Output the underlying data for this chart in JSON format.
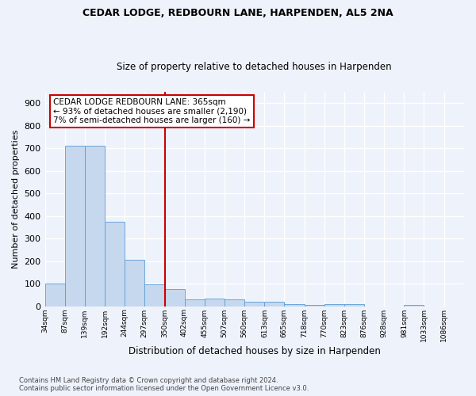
{
  "title1": "CEDAR LODGE, REDBOURN LANE, HARPENDEN, AL5 2NA",
  "title2": "Size of property relative to detached houses in Harpenden",
  "xlabel": "Distribution of detached houses by size in Harpenden",
  "ylabel": "Number of detached properties",
  "bar_color": "#c5d8ed",
  "bar_edgecolor": "#5b9bd5",
  "background_color": "#eef2fb",
  "grid_color": "#ffffff",
  "annotation_text": "CEDAR LODGE REDBOURN LANE: 365sqm\n← 93% of detached houses are smaller (2,190)\n7% of semi-detached houses are larger (160) →",
  "vline_color": "#cc0000",
  "categories": [
    "34sqm",
    "87sqm",
    "139sqm",
    "192sqm",
    "244sqm",
    "297sqm",
    "350sqm",
    "402sqm",
    "455sqm",
    "507sqm",
    "560sqm",
    "613sqm",
    "665sqm",
    "718sqm",
    "770sqm",
    "823sqm",
    "876sqm",
    "928sqm",
    "981sqm",
    "1033sqm",
    "1086sqm"
  ],
  "bin_edges": [
    34,
    87,
    139,
    192,
    244,
    297,
    350,
    402,
    455,
    507,
    560,
    613,
    665,
    718,
    770,
    823,
    876,
    928,
    981,
    1033,
    1086,
    1139
  ],
  "values": [
    100,
    710,
    710,
    375,
    205,
    95,
    75,
    30,
    32,
    30,
    20,
    20,
    10,
    7,
    10,
    8,
    0,
    0,
    5,
    0,
    0
  ],
  "vline_bin_index": 6,
  "ylim": [
    0,
    950
  ],
  "yticks": [
    0,
    100,
    200,
    300,
    400,
    500,
    600,
    700,
    800,
    900
  ],
  "footer": "Contains HM Land Registry data © Crown copyright and database right 2024.\nContains public sector information licensed under the Open Government Licence v3.0."
}
